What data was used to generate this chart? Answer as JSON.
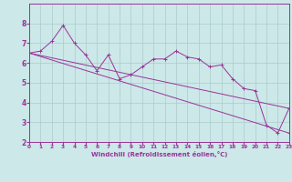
{
  "title": "",
  "xlabel": "Windchill (Refroidissement éolien,°C)",
  "ylabel": "",
  "xlim": [
    0,
    23
  ],
  "ylim": [
    2,
    9
  ],
  "yticks": [
    2,
    3,
    4,
    5,
    6,
    7,
    8
  ],
  "xticks": [
    0,
    1,
    2,
    3,
    4,
    5,
    6,
    7,
    8,
    9,
    10,
    11,
    12,
    13,
    14,
    15,
    16,
    17,
    18,
    19,
    20,
    21,
    22,
    23
  ],
  "bg_color": "#cce8e8",
  "grid_color": "#aacccc",
  "line_color": "#993399",
  "line1_x": [
    0,
    1,
    2,
    3,
    4,
    5,
    6,
    7,
    8,
    9,
    10,
    11,
    12,
    13,
    14,
    15,
    16,
    17,
    18,
    19,
    20,
    21,
    22,
    23
  ],
  "line1_y": [
    6.5,
    6.6,
    7.1,
    7.9,
    7.0,
    6.4,
    5.6,
    6.4,
    5.2,
    5.4,
    5.8,
    6.2,
    6.2,
    6.6,
    6.3,
    6.2,
    5.8,
    5.9,
    5.2,
    4.7,
    4.6,
    2.85,
    2.45,
    3.7
  ],
  "line2_x": [
    0,
    23
  ],
  "line2_y": [
    6.5,
    3.7
  ],
  "line3_x": [
    0,
    23
  ],
  "line3_y": [
    6.5,
    2.45
  ]
}
